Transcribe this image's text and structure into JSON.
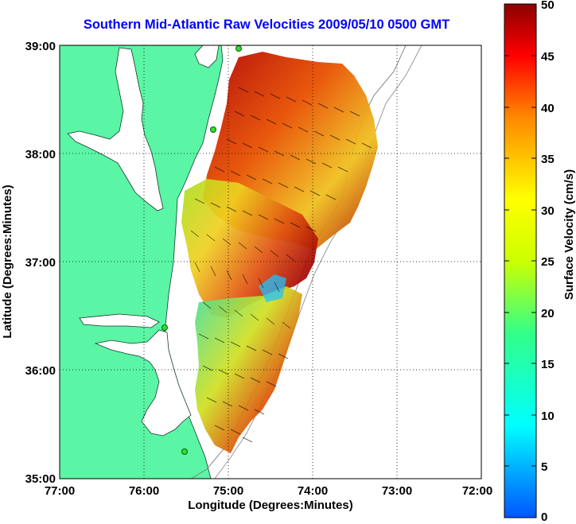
{
  "title": "Southern Mid-Atlantic Raw Velocities 2009/05/10 0500 GMT",
  "x_axis": {
    "label": "Longitude (Degrees:Minutes)",
    "ticks": [
      "77:00",
      "76:00",
      "75:00",
      "74:00",
      "73:00",
      "72:00"
    ]
  },
  "y_axis": {
    "label": "Latitude (Degrees:Minutes)",
    "ticks": [
      "39:00",
      "38:00",
      "37:00",
      "36:00",
      "35:00"
    ]
  },
  "colorbar": {
    "label": "Surface Velocity (cm/s)",
    "ticks": [
      "50",
      "45",
      "40",
      "35",
      "30",
      "25",
      "20",
      "15",
      "10",
      "5",
      "0"
    ]
  },
  "colors": {
    "title": "#0000ff",
    "land": "#5af5a5",
    "water": "#ffffff"
  },
  "map_extent": {
    "lon_min": -77.0,
    "lon_max": -72.0,
    "lat_min": 35.0,
    "lat_max": 39.0
  }
}
